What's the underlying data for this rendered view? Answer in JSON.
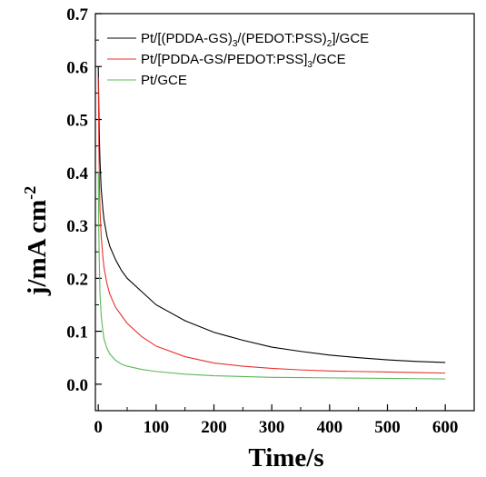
{
  "chart_data": {
    "type": "line",
    "xlabel": "Time/s",
    "ylabel": {
      "text": "j/mA cm",
      "superscript": "-2"
    },
    "xlim": [
      -5,
      650
    ],
    "ylim": [
      -0.05,
      0.7
    ],
    "xticks": [
      "0",
      "100",
      "200",
      "300",
      "400",
      "500",
      "600"
    ],
    "yticks": [
      "0.0",
      "0.1",
      "0.2",
      "0.3",
      "0.4",
      "0.5",
      "0.6",
      "0.7"
    ],
    "legend_position": "top-left",
    "series": [
      {
        "name": "Pt/[(PDDA-GS)3/(PEDOT:PSS)2]/GCE",
        "legend": {
          "pre": "Pt/[(PDDA-GS)",
          "sub1": "3",
          "mid": "/(PEDOT:PSS)",
          "sub2": "2",
          "post": "]/GCE"
        },
        "color": "#000000",
        "x": [
          0,
          1,
          2,
          3,
          5,
          8,
          10,
          15,
          20,
          30,
          40,
          50,
          75,
          100,
          150,
          200,
          250,
          300,
          350,
          400,
          450,
          500,
          550,
          600
        ],
        "y": [
          0.6,
          0.52,
          0.46,
          0.42,
          0.37,
          0.33,
          0.31,
          0.28,
          0.26,
          0.235,
          0.215,
          0.2,
          0.175,
          0.15,
          0.12,
          0.098,
          0.083,
          0.07,
          0.062,
          0.055,
          0.05,
          0.046,
          0.043,
          0.041
        ]
      },
      {
        "name": "Pt/[PDDA-GS/PEDOT:PSS]3/GCE",
        "legend": {
          "pre": "Pt/[PDDA-GS/PEDOT:PSS]",
          "sub1": "3",
          "mid": "",
          "sub2": "",
          "post": "/GCE"
        },
        "color": "#e8312f",
        "x": [
          0,
          1,
          2,
          3,
          5,
          8,
          10,
          15,
          20,
          30,
          40,
          50,
          75,
          100,
          150,
          200,
          250,
          300,
          350,
          400,
          450,
          500,
          550,
          600
        ],
        "y": [
          0.58,
          0.45,
          0.38,
          0.33,
          0.28,
          0.24,
          0.22,
          0.19,
          0.17,
          0.145,
          0.13,
          0.115,
          0.09,
          0.072,
          0.052,
          0.04,
          0.034,
          0.03,
          0.027,
          0.025,
          0.024,
          0.023,
          0.022,
          0.021
        ]
      },
      {
        "name": "Pt/GCE",
        "legend": {
          "pre": "Pt/GCE",
          "sub1": "",
          "mid": "",
          "sub2": "",
          "post": ""
        },
        "color": "#5cb85c",
        "x": [
          0,
          1,
          2,
          3,
          5,
          8,
          10,
          15,
          20,
          30,
          40,
          50,
          75,
          100,
          150,
          200,
          250,
          300,
          350,
          400,
          450,
          500,
          550,
          600
        ],
        "y": [
          0.4,
          0.28,
          0.22,
          0.17,
          0.13,
          0.1,
          0.085,
          0.068,
          0.057,
          0.045,
          0.038,
          0.034,
          0.028,
          0.024,
          0.019,
          0.016,
          0.0145,
          0.013,
          0.0125,
          0.012,
          0.0115,
          0.011,
          0.0105,
          0.01
        ]
      }
    ]
  }
}
